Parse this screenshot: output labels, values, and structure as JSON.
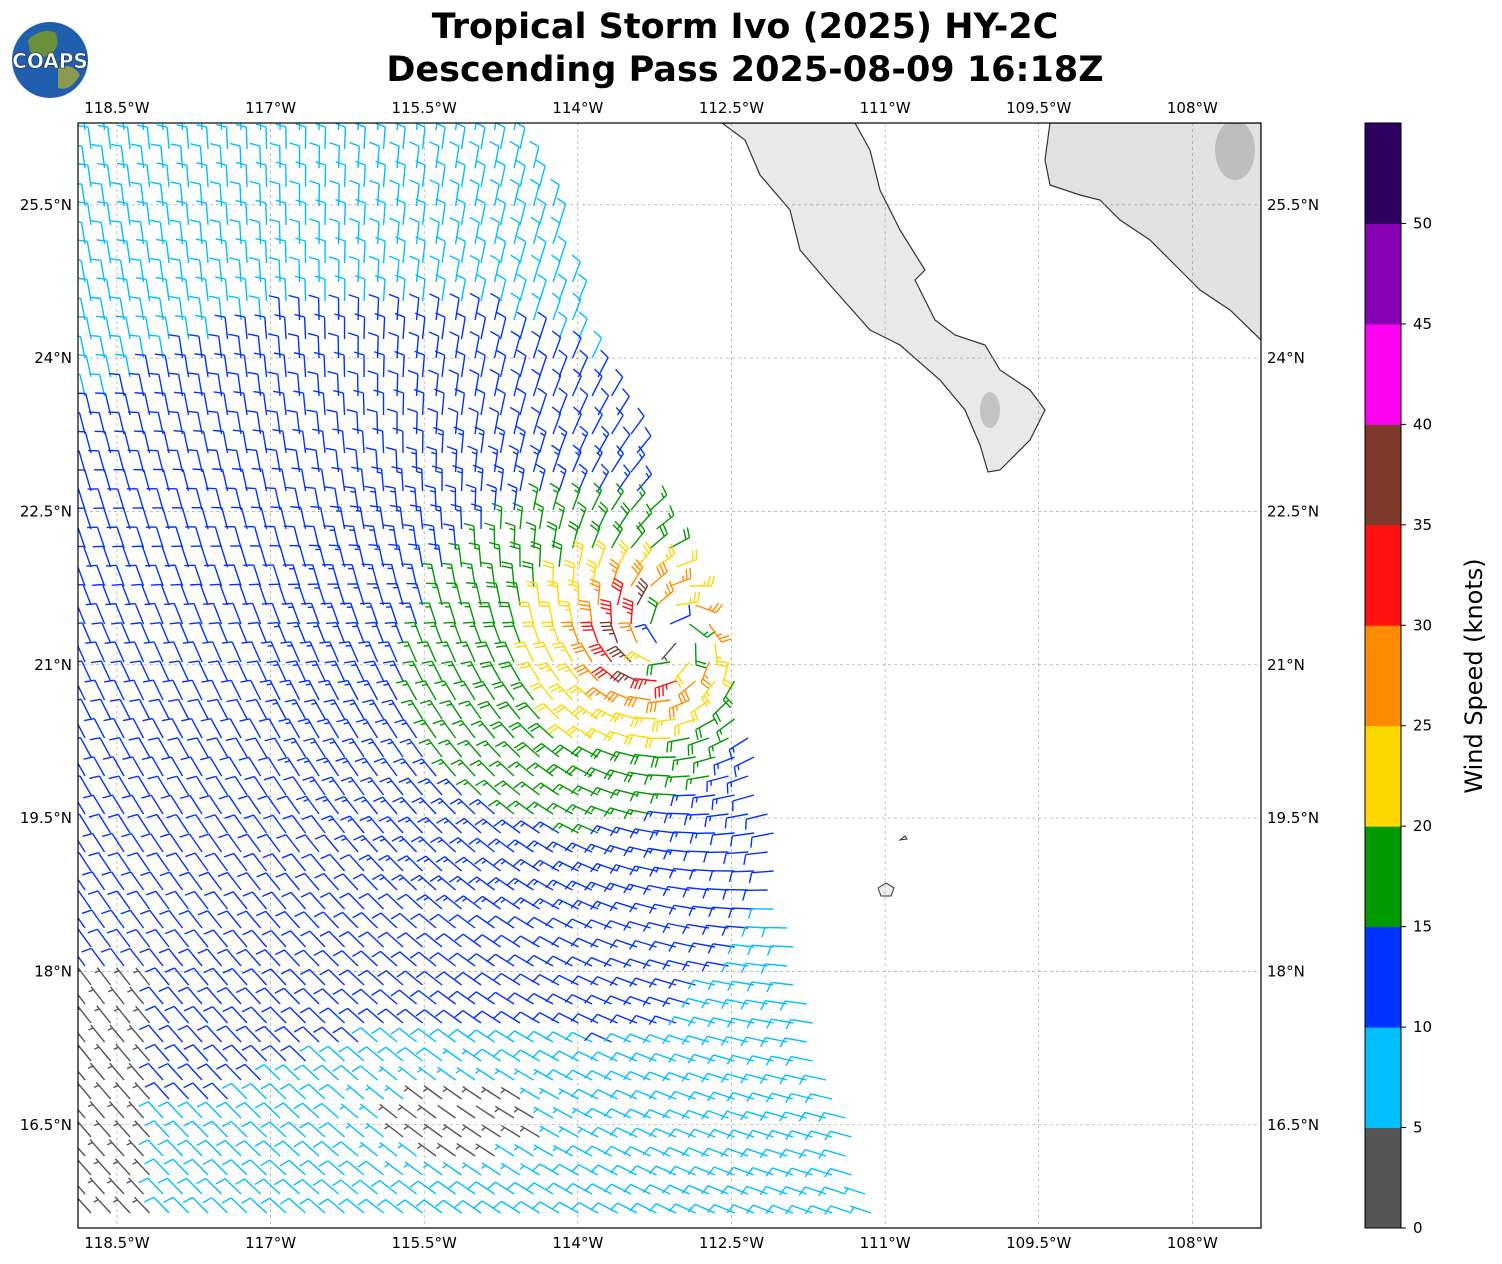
{
  "title": {
    "line1": "Tropical Storm Ivo (2025) HY-2C",
    "line2": "Descending Pass 2025-08-09 16:18Z"
  },
  "logo": {
    "text": "COAPS"
  },
  "map": {
    "lon_ticks": [
      "118.5°W",
      "117°W",
      "115.5°W",
      "114°W",
      "112.5°W",
      "111°W",
      "109.5°W",
      "108°W"
    ],
    "lat_ticks": [
      "25.5°N",
      "24°N",
      "22.5°N",
      "21°N",
      "19.5°N",
      "18°N",
      "16.5°N"
    ],
    "extent": {
      "lon": [
        -118.88,
        -107.33
      ],
      "lat": [
        15.49,
        26.3
      ]
    },
    "gridlines": true,
    "land_color": "#e6e6e6",
    "coast_color": "#333333"
  },
  "colorbar": {
    "label": "Wind Speed (knots)",
    "ticks": [
      "0",
      "5",
      "10",
      "15",
      "20",
      "25",
      "30",
      "35",
      "40",
      "45",
      "50"
    ],
    "range": [
      0,
      55
    ],
    "colors": [
      "#555555",
      "#00bfff",
      "#0033ff",
      "#009900",
      "#ffd700",
      "#ff8c00",
      "#ff1010",
      "#7f3a2a",
      "#ff00f0",
      "#8800b4",
      "#2e0060"
    ]
  }
}
